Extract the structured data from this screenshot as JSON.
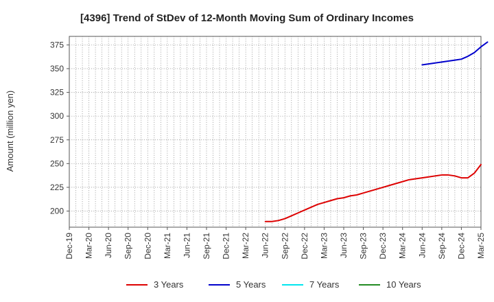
{
  "chart_data": {
    "type": "line",
    "title": "[4396]  Trend of StDev of 12-Month Moving Sum of Ordinary Incomes",
    "xlabel": "",
    "ylabel": "Amount (million yen)",
    "ylim": [
      183,
      384
    ],
    "yticks": [
      200,
      225,
      250,
      275,
      300,
      325,
      350,
      375
    ],
    "grid": true,
    "legend_position": "bottom",
    "x_tick_labels": [
      "Dec-19",
      "Mar-20",
      "Jun-20",
      "Sep-20",
      "Dec-20",
      "Mar-21",
      "Jun-21",
      "Sep-21",
      "Dec-21",
      "Mar-22",
      "Jun-22",
      "Sep-22",
      "Dec-22",
      "Mar-23",
      "Jun-23",
      "Sep-23",
      "Dec-23",
      "Mar-24",
      "Jun-24",
      "Sep-24",
      "Dec-24",
      "Mar-25"
    ],
    "series": [
      {
        "name": "3 Years",
        "color": "#dd0000",
        "start_month_index": 30,
        "values": [
          189,
          189,
          190,
          192,
          195,
          198,
          201,
          204,
          207,
          209,
          211,
          213,
          214,
          216,
          217,
          219,
          221,
          223,
          225,
          227,
          229,
          231,
          233,
          234,
          235,
          236,
          237,
          238,
          238,
          237,
          235,
          235,
          240,
          249
        ]
      },
      {
        "name": "5 Years",
        "color": "#0000cc",
        "start_month_index": 54,
        "values": [
          354,
          355,
          356,
          357,
          358,
          359,
          360,
          363,
          367,
          373,
          378
        ]
      },
      {
        "name": "7 Years",
        "color": "#00e5ee",
        "start_month_index": 0,
        "values": []
      },
      {
        "name": "10 Years",
        "color": "#228b22",
        "start_month_index": 0,
        "values": []
      }
    ]
  }
}
